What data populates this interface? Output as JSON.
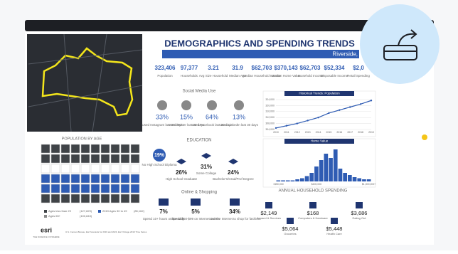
{
  "title": "DEMOGRAPHICS AND SPENDING TRENDS",
  "location": "Riverside,",
  "stats": [
    {
      "value": "323,406",
      "label": "Population"
    },
    {
      "value": "97,377",
      "label": "Households"
    },
    {
      "value": "3.21",
      "label": "Avg Size Household"
    },
    {
      "value": "31.9",
      "label": "Median Age"
    },
    {
      "value": "$62,703",
      "label": "Median Household Income"
    },
    {
      "value": "$370,143",
      "label": "Median Home Value"
    },
    {
      "value": "$62,703",
      "label": "Household Income"
    },
    {
      "value": "$52,334",
      "label": "Disposable Income"
    },
    {
      "value": "$2,0",
      "label": "Retail Spending"
    }
  ],
  "social": {
    "title": "Social Media Use",
    "items": [
      {
        "value": "33%",
        "label": "Used Instagram last 30 days"
      },
      {
        "value": "15%",
        "label": "Used Twitter last 30 days"
      },
      {
        "value": "64%",
        "label": "Used Facebook last 30 days"
      },
      {
        "value": "13%",
        "label": "Used LinkedIn last 30 days"
      }
    ]
  },
  "education": {
    "title": "EDUCATION",
    "items": [
      {
        "value": "19%",
        "label": "No High School Diploma"
      },
      {
        "value": "26%",
        "label": "High School Graduate"
      },
      {
        "value": "31%",
        "label": "Some College"
      },
      {
        "value": "24%",
        "label": "Bachelor's/Grad/Prof Degree"
      }
    ]
  },
  "online": {
    "title": "Online & Shopping",
    "items": [
      {
        "value": "7%",
        "label": "Spend 10+ hours online daily"
      },
      {
        "value": "5%",
        "label": "Spend $50-$99 on Internet orders"
      },
      {
        "value": "34%",
        "label": "Use the Internet to shop for fashion"
      }
    ]
  },
  "spending": {
    "title": "ANNUAL HOUSEHOLD SPENDING",
    "items": [
      {
        "value": "$2,149",
        "label": "Apparel & Services"
      },
      {
        "value": "$168",
        "label": "Computers & Hardware"
      },
      {
        "value": "$3,686",
        "label": "Eating Out"
      },
      {
        "value": "$5,064",
        "label": "Groceries"
      },
      {
        "value": "$5,448",
        "label": "Health Care"
      }
    ]
  },
  "age": {
    "title": "POPULATION BY AGE",
    "legend": [
      {
        "name": "Ages less than 29",
        "value": "(127,829)"
      },
      {
        "name": "2019 Ages 30 to 49",
        "value": "(85,162)"
      },
      {
        "name": "Ages 65+",
        "value": "(100,843)"
      }
    ]
  },
  "footer": {
    "brand": "esri",
    "tagline": "THE SCIENCE OF WHERE",
    "source": "U.S. Census Bureau, Esri forecasts for 2019 and 2024, Esri Vintage 2019 Time Series"
  },
  "chart_data": [
    {
      "type": "line",
      "title": "Historical Trends: Population",
      "x": [
        2010,
        2011,
        2012,
        2013,
        2014,
        2015,
        2016,
        2017,
        2018,
        2019
      ],
      "values": [
        305000,
        306500,
        308000,
        310000,
        312000,
        315000,
        317000,
        319000,
        321000,
        323406
      ],
      "color": "#2f5cb3",
      "xlim": [
        2010,
        2019
      ],
      "ylim": [
        304000,
        324000
      ],
      "yticks": [
        {
          "value": 304000,
          "label": "304,000"
        },
        {
          "value": 308000,
          "label": "308,000"
        },
        {
          "value": 312000,
          "label": "312,000"
        },
        {
          "value": 316000,
          "label": "316,000"
        },
        {
          "value": 320000,
          "label": "320,000"
        },
        {
          "value": 324000,
          "label": "324,000"
        }
      ],
      "xticks": [
        2010,
        2011,
        2012,
        2013,
        2014,
        2015,
        2016,
        2017,
        2018,
        2019
      ]
    },
    {
      "type": "bar",
      "title": "Home Value",
      "categories": [
        "<$50,000",
        null,
        null,
        null,
        null,
        null,
        null,
        null,
        "$400,000",
        null,
        null,
        null,
        null,
        null,
        null,
        null,
        null,
        null,
        null,
        "$1,000,000+"
      ],
      "values": [
        1,
        1,
        1,
        1,
        2,
        3,
        5,
        8,
        14,
        20,
        26,
        22,
        30,
        12,
        8,
        6,
        4,
        3,
        2,
        2
      ],
      "color": "#2f5cb3",
      "ylim": [
        0,
        32
      ]
    }
  ]
}
